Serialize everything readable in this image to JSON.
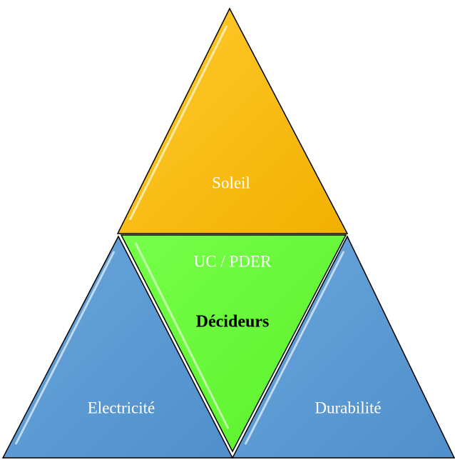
{
  "nodes": [
    {
      "label": "Soleil"
    },
    {
      "label": "UC / PDER",
      "sublabel": "Décideurs"
    },
    {
      "label": "Electricité"
    },
    {
      "label": "Durabilité"
    }
  ]
}
